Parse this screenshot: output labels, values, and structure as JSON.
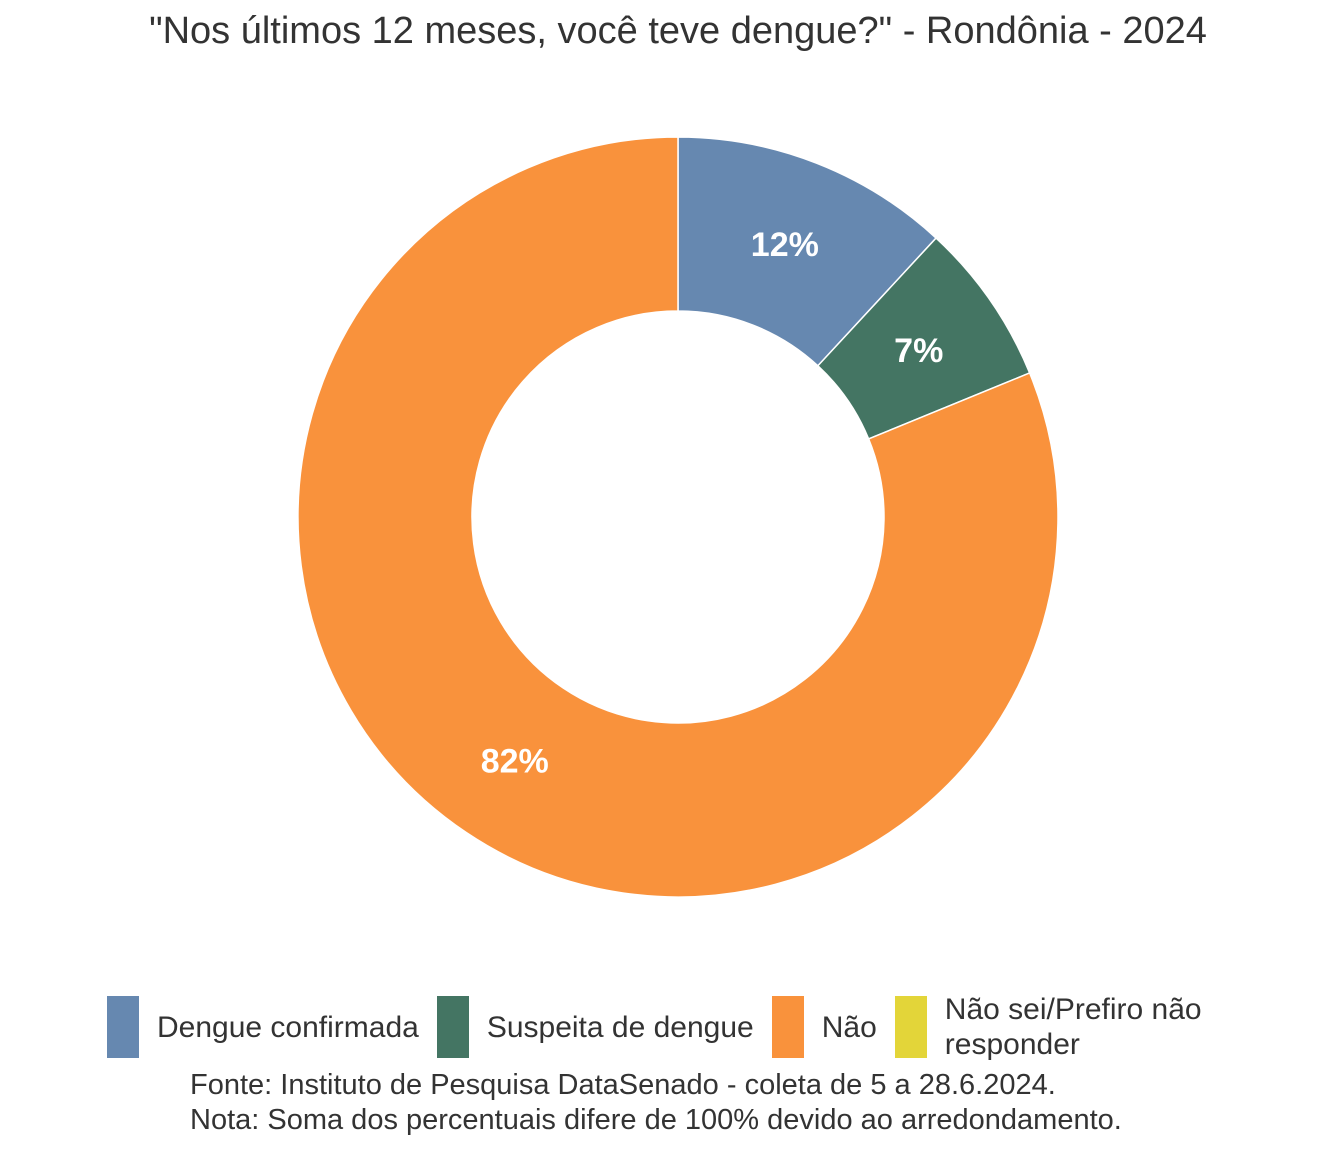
{
  "chart_data": {
    "type": "pie",
    "subtype": "donut",
    "title": "\"Nos últimos 12 meses, você teve dengue?\" - Rondônia - 2024",
    "categories": [
      "Dengue confirmada",
      "Suspeita de dengue",
      "Não",
      "Não sei/Prefiro não responder"
    ],
    "values": [
      12,
      7,
      82,
      0
    ],
    "labels": [
      "12%",
      "7%",
      "82%",
      ""
    ],
    "colors": [
      "#6688B0",
      "#447563",
      "#F9923C",
      "#E3D539"
    ],
    "legend_position": "bottom",
    "source": "Fonte: Instituto de Pesquisa DataSenado - coleta de 5 a 28.6.2024.",
    "note": "Nota: Soma dos percentuais difere de 100% devido ao arredondamento."
  }
}
